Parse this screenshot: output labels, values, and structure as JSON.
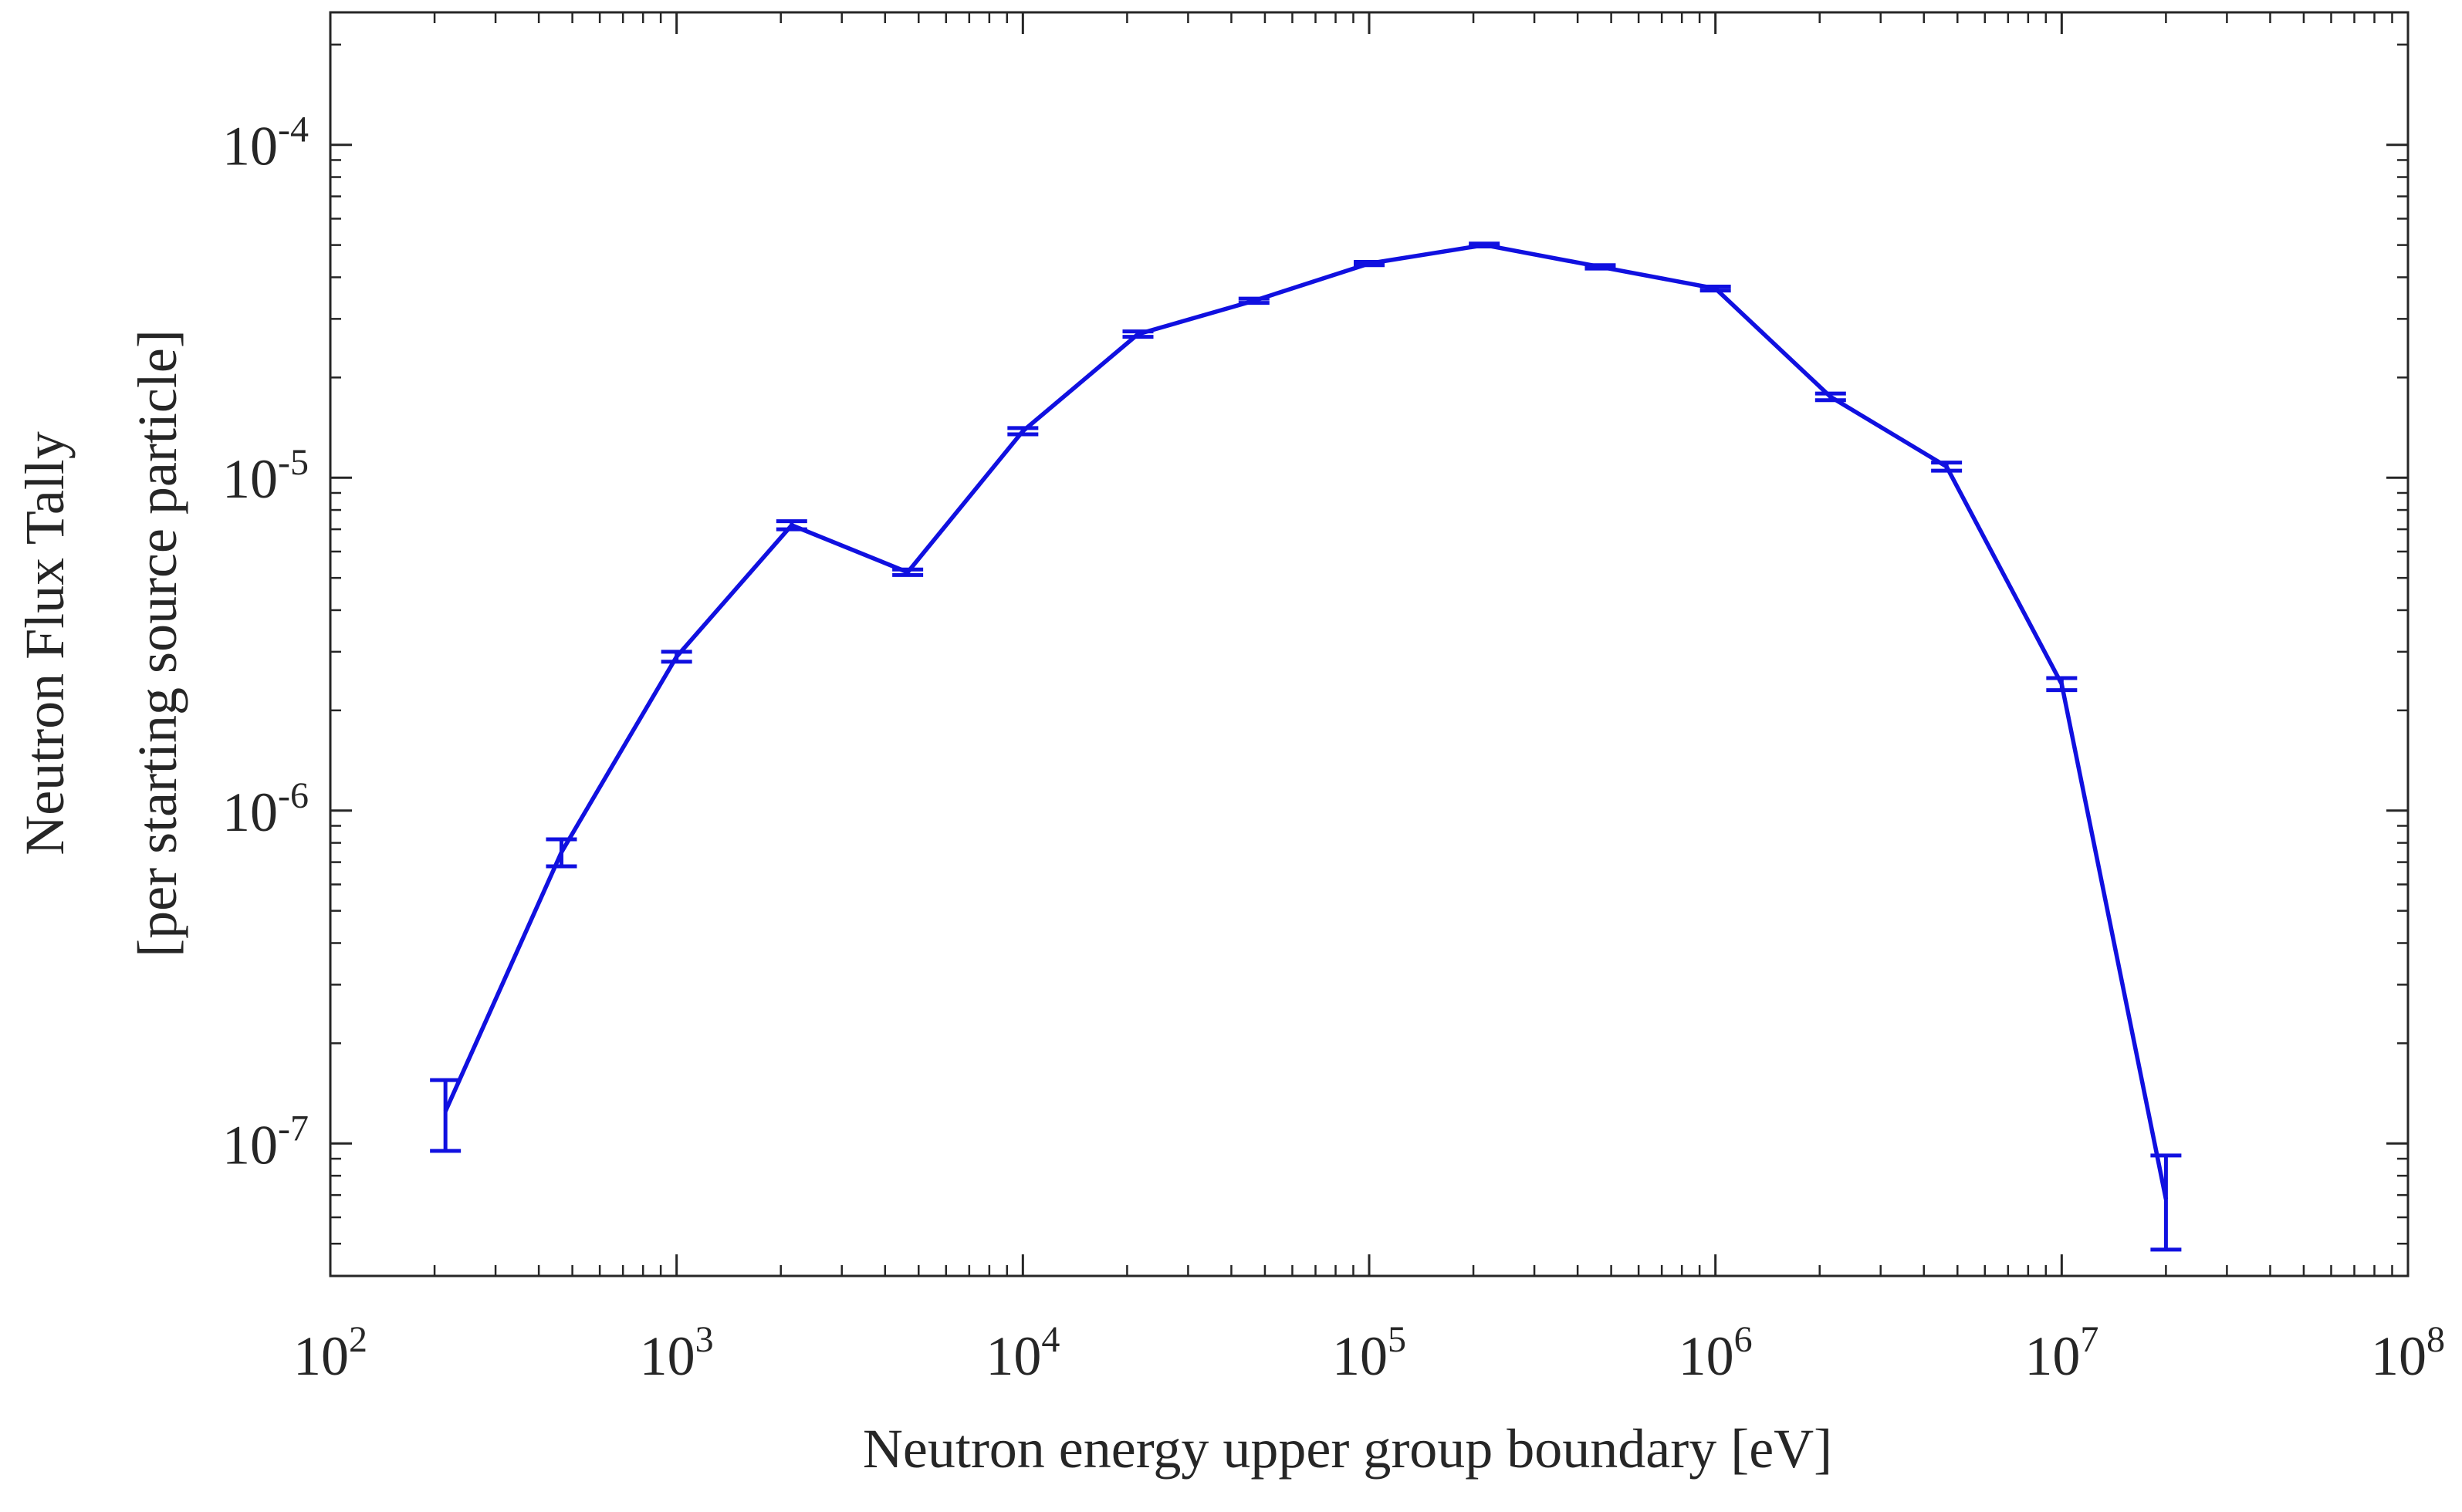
{
  "chart_data": {
    "type": "line",
    "title": "",
    "xlabel": "Neutron energy upper group boundary [eV]",
    "ylabel_line1": "Neutron Flux Tally",
    "ylabel_line2": "[per starting source particle]",
    "xscale": "log",
    "yscale": "log",
    "xlim": [
      100,
      100000000
    ],
    "ylim": [
      4e-08,
      0.00025
    ],
    "grid": false,
    "color": "#1010e0",
    "x_ticks": [
      {
        "base": "10",
        "exp": "2",
        "value": 100
      },
      {
        "base": "10",
        "exp": "3",
        "value": 1000
      },
      {
        "base": "10",
        "exp": "4",
        "value": 10000
      },
      {
        "base": "10",
        "exp": "5",
        "value": 100000
      },
      {
        "base": "10",
        "exp": "6",
        "value": 1000000
      },
      {
        "base": "10",
        "exp": "7",
        "value": 10000000
      },
      {
        "base": "10",
        "exp": "8",
        "value": 100000000
      }
    ],
    "y_ticks": [
      {
        "base": "10",
        "exp": "-7",
        "value": 1e-07
      },
      {
        "base": "10",
        "exp": "-6",
        "value": 1e-06
      },
      {
        "base": "10",
        "exp": "-5",
        "value": 1e-05
      },
      {
        "base": "10",
        "exp": "-4",
        "value": 0.0001
      }
    ],
    "series": [
      {
        "name": "Neutron flux",
        "x": [
          215,
          465,
          1000,
          2150,
          4650,
          10000,
          21500,
          46500,
          100000,
          215000,
          465000,
          1000000,
          2150000,
          4650000,
          10000000,
          20000000
        ],
        "y": [
          1.25e-07,
          7.5e-07,
          2.9e-06,
          7.2e-06,
          5.2e-06,
          1.38e-05,
          2.7e-05,
          3.4e-05,
          4.4e-05,
          5e-05,
          4.3e-05,
          3.7e-05,
          1.75e-05,
          1.08e-05,
          2.4e-06,
          6.8e-08
        ],
        "y_low": [
          9.5e-08,
          6.8e-07,
          2.8e-06,
          7e-06,
          5.1e-06,
          1.35e-05,
          2.65e-05,
          3.35e-05,
          4.35e-05,
          4.95e-05,
          4.25e-05,
          3.65e-05,
          1.71e-05,
          1.05e-05,
          2.3e-06,
          4.8e-08
        ],
        "y_high": [
          1.55e-07,
          8.2e-07,
          3e-06,
          7.4e-06,
          5.3e-06,
          1.41e-05,
          2.75e-05,
          3.45e-05,
          4.45e-05,
          5.05e-05,
          4.35e-05,
          3.75e-05,
          1.79e-05,
          1.11e-05,
          2.5e-06,
          9.2e-08
        ]
      }
    ]
  }
}
